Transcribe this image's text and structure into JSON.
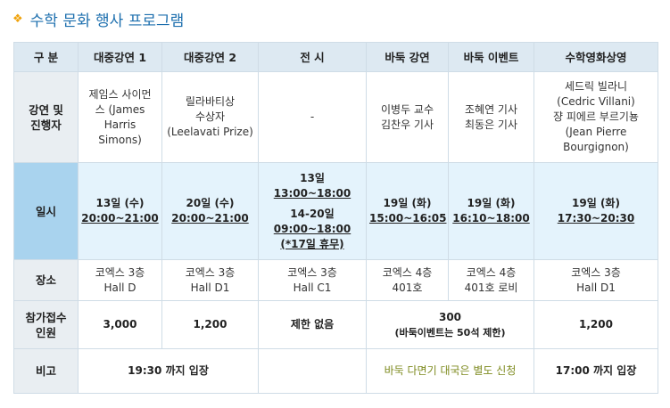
{
  "title": "수학 문화 행사 프로그램",
  "header": [
    "구 분",
    "대중강연 1",
    "대중강연 2",
    "전 시",
    "바둑 강연",
    "바둑 이벤트",
    "수학영화상영"
  ],
  "rows": {
    "speakers": {
      "label": [
        "강연 및",
        "진행자"
      ],
      "lecture1": [
        "제임스 사이먼",
        "스 (James",
        "Harris Simons)"
      ],
      "lecture2": [
        "릴라바티상",
        "수상자",
        "(Leelavati Prize)"
      ],
      "exhibition": "-",
      "baduk_lecture": [
        "이병두 교수",
        "김찬우 기사"
      ],
      "baduk_event": [
        "조혜연 기사",
        "최동은 기사"
      ],
      "movie": [
        "세드릭 빌라니",
        "(Cedric Villani)",
        "쟝 피에르 부르기뇽",
        "(Jean Pierre",
        "Bourgignon)"
      ]
    },
    "datetime": {
      "label": "일시",
      "lecture1": {
        "day": "13일 (수)",
        "time": "20:00~21:00"
      },
      "lecture2": {
        "day": "20일 (수)",
        "time": "20:00~21:00"
      },
      "exhibition": {
        "day1": "13일",
        "time1": "13:00~18:00",
        "day2": "14-20일",
        "time2": "09:00~18:00",
        "note": "(*17일 휴무)"
      },
      "baduk_lecture": {
        "day": "19일 (화)",
        "time": "15:00~16:05"
      },
      "baduk_event": {
        "day": "19일 (화)",
        "time": "16:10~18:00"
      },
      "movie": {
        "day": "19일 (화)",
        "time": "17:30~20:30"
      }
    },
    "venue": {
      "label": "장소",
      "lecture1": [
        "코엑스 3층",
        "Hall D"
      ],
      "lecture2": [
        "코엑스 3층",
        "Hall D1"
      ],
      "exhibition": [
        "코엑스 3층",
        "Hall C1"
      ],
      "baduk_lecture": [
        "코엑스 4층",
        "401호"
      ],
      "baduk_event": [
        "코엑스 4층",
        "401호 로비"
      ],
      "movie": [
        "코엑스 3층",
        "Hall D1"
      ]
    },
    "capacity": {
      "label": [
        "참가접수",
        "인원"
      ],
      "lecture1": "3,000",
      "lecture2": "1,200",
      "exhibition": "제한 없음",
      "baduk": "300",
      "baduk_note": "(바둑이벤트는 50석 제한)",
      "movie": "1,200"
    },
    "remarks": {
      "label": "비고",
      "lectures": "19:30 까지 입장",
      "exhibition": "",
      "baduk": "바둑 다면기 대국은 별도 신청",
      "movie": "17:00 까지 입장"
    }
  },
  "colors": {
    "title": "#1d6fae",
    "title_marker": "#f0a20a",
    "header_bg": "#dde9f2",
    "rowhead_bg": "#e9eef2",
    "date_row_bg": "#e4f3fc",
    "date_rowhead_bg": "#a9d3ee",
    "border": "#cfdce6",
    "baduk_remark": "#7d8a1e"
  }
}
